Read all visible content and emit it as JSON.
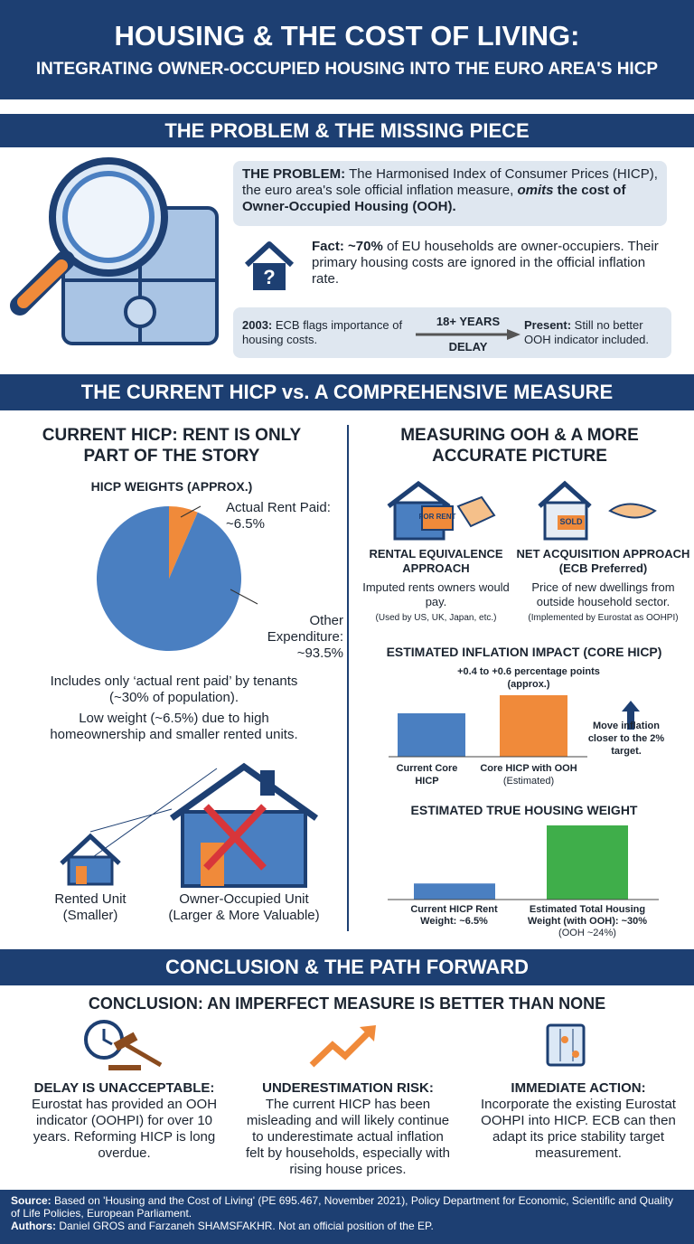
{
  "header": {
    "title": "HOUSING & THE COST OF LIVING:",
    "subtitle": "INTEGRATING OWNER-OCCUPIED HOUSING INTO THE EURO AREA'S HICP"
  },
  "problem": {
    "heading": "THE PROBLEM & THE MISSING PIECE",
    "statement": {
      "label": "THE PROBLEM:",
      "text": "The Harmonised Index of Consumer Prices (HICP), the euro area's sole official inflation measure,",
      "emphasis": "omits",
      "tail": "the cost of Owner-Occupied Housing (OOH)."
    },
    "fact": {
      "label": "Fact:",
      "share": "~70%",
      "text": "of EU households are owner-occupiers. Their primary housing costs are ignored in the official inflation rate."
    },
    "timeline": {
      "start_label": "2003:",
      "start": "ECB flags importance of housing costs.",
      "delay_top": "18+ YEARS",
      "delay_bottom": "DELAY",
      "end_label": "Present:",
      "end": "Still no better OOH indicator included."
    }
  },
  "comparison": {
    "heading": "THE CURRENT HICP vs. A COMPREHENSIVE MEASURE",
    "left": {
      "heading": "CURRENT HICP: RENT IS ONLY PART OF THE STORY",
      "pie": {
        "type": "pie",
        "title": "HICP WEIGHTS (APPROX.)",
        "categories": [
          "Actual Rent Paid:",
          "Other Expenditure:"
        ],
        "values": [
          6.5,
          93.5
        ],
        "value_labels": [
          "~6.5%",
          "~93.5%"
        ],
        "colors": [
          "#f08a3a",
          "#4a7fc1"
        ]
      },
      "notes": [
        "Includes only ‘actual rent paid’ by tenants (~30% of population).",
        "Low weight (~6.5%) due to high homeownership and smaller rented units."
      ],
      "houses": [
        {
          "name": "Rented Unit",
          "note": "(Smaller)"
        },
        {
          "name": "Owner-Occupied Unit",
          "note": "(Larger & More Valuable)"
        }
      ]
    },
    "right": {
      "heading": "MEASURING OOH & A MORE ACCURATE PICTURE",
      "approaches": [
        {
          "sign": "FOR RENT",
          "title": "RENTAL EQUIVALENCE APPROACH",
          "text": "Imputed rents owners would pay.",
          "note": "(Used by US, UK, Japan, etc.)"
        },
        {
          "sign": "SOLD",
          "title": "NET ACQUISITION APPROACH (ECB Preferred)",
          "text": "Price of new dwellings from outside household sector.",
          "note": "(Implemented by Eurostat as OOHPI)"
        }
      ],
      "impact": {
        "title": "ESTIMATED INFLATION IMPACT (CORE HICP)",
        "annotation": "+0.4 to +0.6 percentage points (approx.)",
        "categories": [
          "Current Core HICP",
          "Core HICP with OOH"
        ],
        "note": "(Estimated)",
        "arrow_text": "Move inflation closer to the 2% target."
      },
      "weight": {
        "type": "bar",
        "title": "ESTIMATED TRUE HOUSING WEIGHT",
        "categories": [
          "Current HICP Rent Weight:",
          "Estimated Total Housing Weight (with OOH):"
        ],
        "values": [
          6.5,
          30
        ],
        "value_labels": [
          "~6.5%",
          "~30%"
        ],
        "note": "(OOH ~24%)",
        "colors": [
          "#4a7fc1",
          "#3fae4a"
        ]
      }
    }
  },
  "conclusion": {
    "heading": "CONCLUSION & THE PATH FORWARD",
    "subheading": "CONCLUSION: AN IMPERFECT MEASURE IS BETTER THAN NONE",
    "items": [
      {
        "title": "DELAY IS UNACCEPTABLE:",
        "text": "Eurostat has provided an OOH indicator (OOHPI) for over 10 years. Reforming HICP is long overdue."
      },
      {
        "title": "UNDERESTIMATION RISK:",
        "text": "The current HICP has been misleading and will likely continue to underestimate actual inflation felt by households, especially with rising house prices."
      },
      {
        "title": "IMMEDIATE ACTION:",
        "text": "Incorporate the existing Eurostat OOHPI into HICP. ECB can then adapt its price stability target measurement."
      }
    ]
  },
  "footer": {
    "source_label": "Source:",
    "source": "Based on 'Housing and the Cost of Living' (PE 695.467, November 2021), Policy Department for Economic, Scientific and Quality of Life Policies, European Parliament.",
    "authors_label": "Authors:",
    "authors": "Daniel GROS and Farzaneh SHAMSFAKHR. Not an official position of the EP."
  }
}
